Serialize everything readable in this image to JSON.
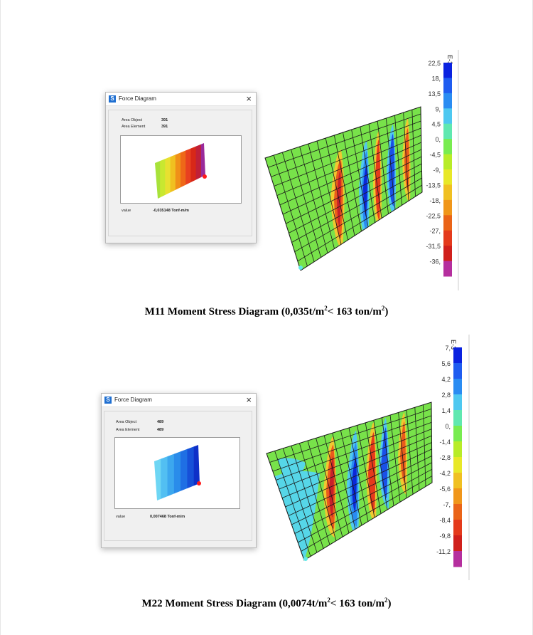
{
  "diagrams": [
    {
      "dialog": {
        "title": "Force Diagram",
        "app_icon": "S",
        "close": "×",
        "area_object_label": "Area Object",
        "area_object_value": "391",
        "area_element_label": "Area Element",
        "area_element_value": "391",
        "value_label": "value",
        "value_text": "-0,035148 Tonf-m/m",
        "preview_colors": [
          "#a8e23a",
          "#c8e830",
          "#e8e030",
          "#f0c020",
          "#f09018",
          "#ee6818",
          "#e84020",
          "#d82818",
          "#c02038",
          "#9a2a9a"
        ]
      },
      "legend": {
        "exponent": "E-3",
        "labels": [
          "22,5",
          "18,",
          "13,5",
          "9,",
          "4,5",
          "0,",
          "-4,5",
          "-9,",
          "-13,5",
          "-18,",
          "-22,5",
          "-27,",
          "-31,5",
          "-36,"
        ],
        "colors": [
          "#0a22e0",
          "#1f5cf0",
          "#2a8cf2",
          "#4ec8f0",
          "#60e8b0",
          "#78ec50",
          "#b8ec28",
          "#e8e828",
          "#f0c022",
          "#f0961a",
          "#ea6418",
          "#e43a1c",
          "#d0201c",
          "#b52f9e"
        ]
      },
      "caption": {
        "main": "M11 Moment Stress Diagram (0,035t/m",
        "sup1": "2",
        "mid": "< 163 ton/m",
        "sup2": "2",
        "end": ")"
      }
    },
    {
      "dialog": {
        "title": "Force Diagram",
        "app_icon": "S",
        "close": "×",
        "area_object_label": "Area Object",
        "area_object_value": "489",
        "area_element_label": "Area Element",
        "area_element_value": "489",
        "value_label": "value",
        "value_text": "0,007468 Tonf-m/m",
        "preview_colors": [
          "#6ed6f4",
          "#52bff2",
          "#3ca7ee",
          "#2a8cea",
          "#1f6fe4",
          "#1650d8",
          "#0e30c8"
        ]
      },
      "legend": {
        "exponent": "E-3",
        "labels": [
          "7,",
          "5,6",
          "4,2",
          "2,8",
          "1,4",
          "0,",
          "-1,4",
          "-2,8",
          "-4,2",
          "-5,6",
          "-7,",
          "-8,4",
          "-9,8",
          "-11,2"
        ],
        "colors": [
          "#0a22e0",
          "#1f5cf0",
          "#2a8cf2",
          "#4ec8f0",
          "#60e8b0",
          "#78ec50",
          "#b8ec28",
          "#e8e828",
          "#f0c022",
          "#f0961a",
          "#ea6418",
          "#e43a1c",
          "#d0201c",
          "#b52f9e"
        ]
      },
      "caption": {
        "main": "M22 Moment Stress Diagram (0,0074t/m",
        "sup1": "2",
        "mid": "< 163 ton/m",
        "sup2": "2",
        "end": ")"
      }
    }
  ]
}
